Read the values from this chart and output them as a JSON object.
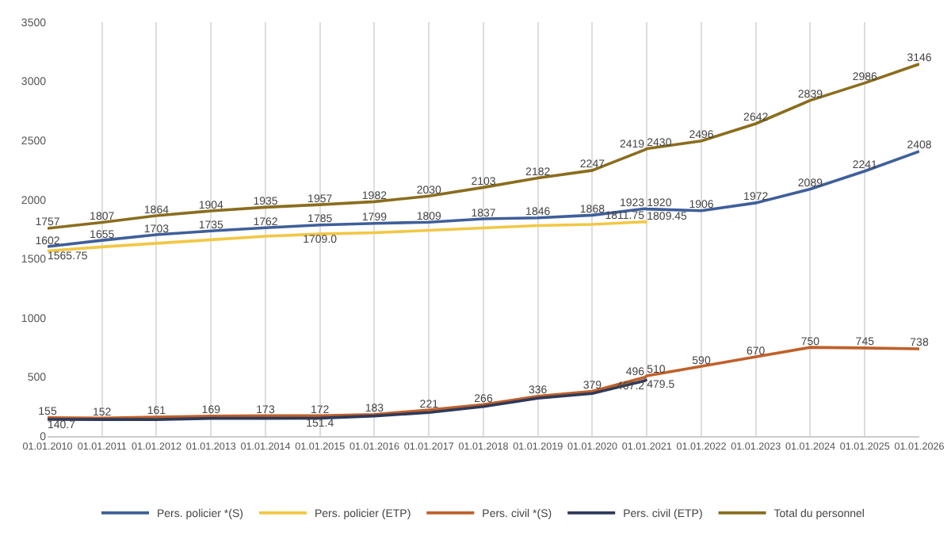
{
  "chart_data": {
    "type": "line",
    "x": [
      "2010-01-01",
      "2011-01-01",
      "2012-01-01",
      "2013-01-01",
      "2014-01-01",
      "2015-01-01",
      "2016-01-01",
      "2017-01-01",
      "2018-01-01",
      "2019-01-01",
      "2020-01-01",
      "2020-12-15",
      "2021-01-01",
      "2022-01-01",
      "2023-01-01",
      "2024-01-01",
      "2025-01-01",
      "2026-01-01"
    ],
    "series": [
      {
        "name": "Pers. policier *(S)",
        "color": "#3f5f9a",
        "values": [
          1602,
          1655,
          1703,
          1735,
          1762,
          1785,
          1799,
          1809,
          1837,
          1846,
          1868,
          1923,
          1920,
          1906,
          1972,
          2089,
          2241,
          2408
        ],
        "value_labels": [
          "1602",
          "1655",
          "1703",
          "1735",
          "1762",
          "1785",
          "1799",
          "1809",
          "1837",
          "1846",
          "1868",
          "1923",
          "1920",
          "1906",
          "1972",
          "2089",
          "2241",
          "2408"
        ]
      },
      {
        "name": "Pers. policier (ETP)",
        "color": "#f2c744",
        "values": [
          1565.75,
          1600,
          1630,
          1660,
          1690,
          1709.0,
          1720,
          1740,
          1760,
          1780,
          1790,
          1811.75,
          1809.45,
          null,
          null,
          null,
          null,
          null
        ],
        "value_labels": [
          "1565.75",
          null,
          null,
          null,
          null,
          "1709.0",
          null,
          null,
          null,
          null,
          null,
          "1811.75",
          "1809.45",
          null,
          null,
          null,
          null,
          null
        ]
      },
      {
        "name": "Pers. civil *(S)",
        "color": "#c0602a",
        "values": [
          155,
          152,
          161,
          169,
          173,
          172,
          183,
          221,
          266,
          336,
          379,
          496,
          510,
          590,
          670,
          750,
          745,
          738
        ],
        "value_labels": [
          "155",
          "152",
          "161",
          "169",
          "173",
          "172",
          "183",
          "221",
          "266",
          "336",
          "379",
          "496",
          "510",
          "590",
          "670",
          "750",
          "745",
          "738"
        ]
      },
      {
        "name": "Pers. civil (ETP)",
        "color": "#2e3a5a",
        "values": [
          140.7,
          140,
          140,
          150,
          150,
          151.4,
          170,
          200,
          250,
          320,
          360,
          467.2,
          479.5,
          null,
          null,
          null,
          null,
          null
        ],
        "value_labels": [
          "140.7",
          null,
          null,
          null,
          null,
          "151.4",
          null,
          null,
          null,
          null,
          null,
          "467.2",
          "479.5",
          null,
          null,
          null,
          null,
          null
        ]
      },
      {
        "name": "Total du personnel",
        "color": "#8a6d1e",
        "values": [
          1757,
          1807,
          1864,
          1904,
          1935,
          1957,
          1982,
          2030,
          2103,
          2182,
          2247,
          2419,
          2430,
          2496,
          2642,
          2839,
          2986,
          3146
        ],
        "value_labels": [
          "1757",
          "1807",
          "1864",
          "1904",
          "1935",
          "1957",
          "1982",
          "2030",
          "2103",
          "2182",
          "2247",
          "2419",
          "2430",
          "2496",
          "2642",
          "2839",
          "2986",
          "3146"
        ]
      }
    ],
    "xlim": [
      "2010-01-01",
      "2026-01-01"
    ],
    "xticks": [
      {
        "value": "2010-01-01",
        "label": "01.01.2010"
      },
      {
        "value": "2011-01-01",
        "label": "01.01.2011"
      },
      {
        "value": "2012-01-01",
        "label": "01.01.2012"
      },
      {
        "value": "2013-01-01",
        "label": "01.01.2013"
      },
      {
        "value": "2014-01-01",
        "label": "01.01.2014"
      },
      {
        "value": "2015-01-01",
        "label": "01.01.2015"
      },
      {
        "value": "2016-01-01",
        "label": "01.01.2016"
      },
      {
        "value": "2017-01-01",
        "label": "01.01.2017"
      },
      {
        "value": "2018-01-01",
        "label": "01.01.2018"
      },
      {
        "value": "2019-01-01",
        "label": "01.01.2019"
      },
      {
        "value": "2020-01-01",
        "label": "01.01.2020"
      },
      {
        "value": "2021-01-01",
        "label": "01.01.2021"
      },
      {
        "value": "2022-01-01",
        "label": "01.01.2022"
      },
      {
        "value": "2023-01-01",
        "label": "01.01.2023"
      },
      {
        "value": "2024-01-01",
        "label": "01.01.2024"
      },
      {
        "value": "2025-01-01",
        "label": "01.01.2025"
      },
      {
        "value": "2026-01-01",
        "label": "01.01.2026"
      }
    ],
    "ylim": [
      0,
      3500
    ],
    "yticks": [
      0,
      500,
      1000,
      1500,
      2000,
      2500,
      3000,
      3500
    ],
    "grid": "x",
    "legend": "bottom",
    "marker": "none",
    "line_style": "solid"
  }
}
